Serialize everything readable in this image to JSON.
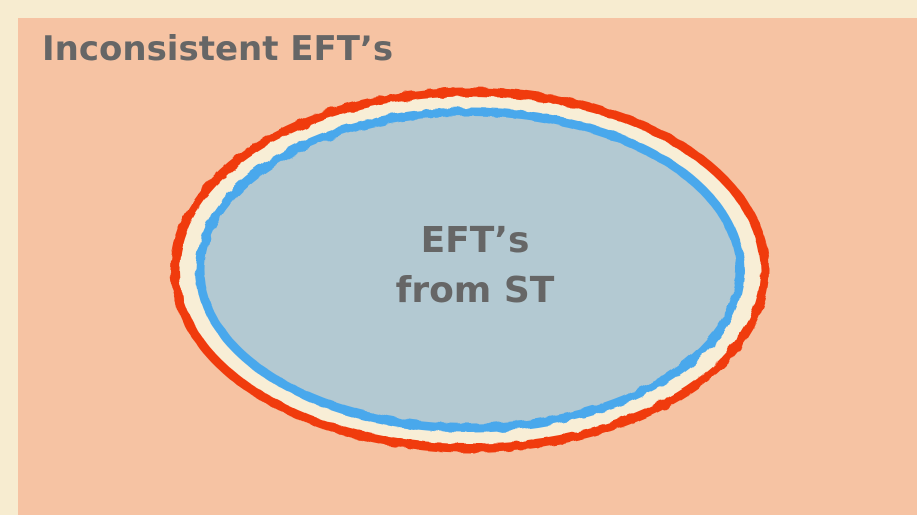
{
  "title": "Inconsistent EFT’s",
  "inner": {
    "lines": [
      "EFT’s",
      "from ST"
    ]
  }
}
